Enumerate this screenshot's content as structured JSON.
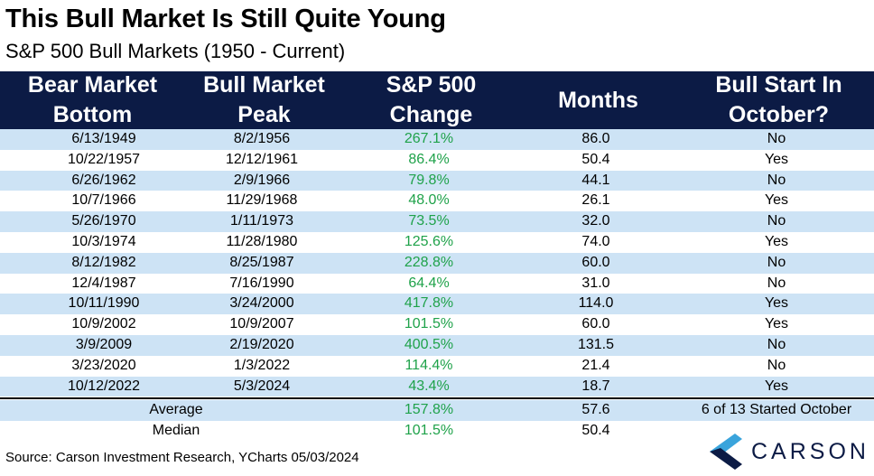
{
  "title": "This Bull Market Is Still Quite Young",
  "subtitle": "S&P 500 Bull Markets (1950 - Current)",
  "headers": [
    [
      "Bear Market",
      "Bottom"
    ],
    [
      "Bull Market",
      "Peak"
    ],
    [
      "S&P 500",
      "Change"
    ],
    [
      "Months"
    ],
    [
      "Bull Start In",
      "October?"
    ]
  ],
  "rows": [
    {
      "bottom": "6/13/1949",
      "peak": "8/2/1956",
      "change": "267.1%",
      "months": "86.0",
      "october": "No"
    },
    {
      "bottom": "10/22/1957",
      "peak": "12/12/1961",
      "change": "86.4%",
      "months": "50.4",
      "october": "Yes"
    },
    {
      "bottom": "6/26/1962",
      "peak": "2/9/1966",
      "change": "79.8%",
      "months": "44.1",
      "october": "No"
    },
    {
      "bottom": "10/7/1966",
      "peak": "11/29/1968",
      "change": "48.0%",
      "months": "26.1",
      "october": "Yes"
    },
    {
      "bottom": "5/26/1970",
      "peak": "1/11/1973",
      "change": "73.5%",
      "months": "32.0",
      "october": "No"
    },
    {
      "bottom": "10/3/1974",
      "peak": "11/28/1980",
      "change": "125.6%",
      "months": "74.0",
      "october": "Yes"
    },
    {
      "bottom": "8/12/1982",
      "peak": "8/25/1987",
      "change": "228.8%",
      "months": "60.0",
      "october": "No"
    },
    {
      "bottom": "12/4/1987",
      "peak": "7/16/1990",
      "change": "64.4%",
      "months": "31.0",
      "october": "No"
    },
    {
      "bottom": "10/11/1990",
      "peak": "3/24/2000",
      "change": "417.8%",
      "months": "114.0",
      "october": "Yes"
    },
    {
      "bottom": "10/9/2002",
      "peak": "10/9/2007",
      "change": "101.5%",
      "months": "60.0",
      "october": "Yes"
    },
    {
      "bottom": "3/9/2009",
      "peak": "2/19/2020",
      "change": "400.5%",
      "months": "131.5",
      "october": "No"
    },
    {
      "bottom": "3/23/2020",
      "peak": "1/3/2022",
      "change": "114.4%",
      "months": "21.4",
      "october": "No"
    },
    {
      "bottom": "10/12/2022",
      "peak": "5/3/2024",
      "change": "43.4%",
      "months": "18.7",
      "october": "Yes"
    }
  ],
  "summary": {
    "average": {
      "label": "Average",
      "change": "157.8%",
      "months": "57.6",
      "october": "6 of 13 Started October"
    },
    "median": {
      "label": "Median",
      "change": "101.5%",
      "months": "50.4",
      "october": ""
    }
  },
  "source": "Source: Carson Investment Research, YCharts 05/03/2024",
  "logo": {
    "text": "CARSON",
    "colors": {
      "light": "#3aa4dc",
      "dark": "#0c1b45"
    }
  },
  "colors": {
    "header_bg": "#0c1b45",
    "row_shade": "#cde3f5",
    "positive": "#1fa24a"
  }
}
